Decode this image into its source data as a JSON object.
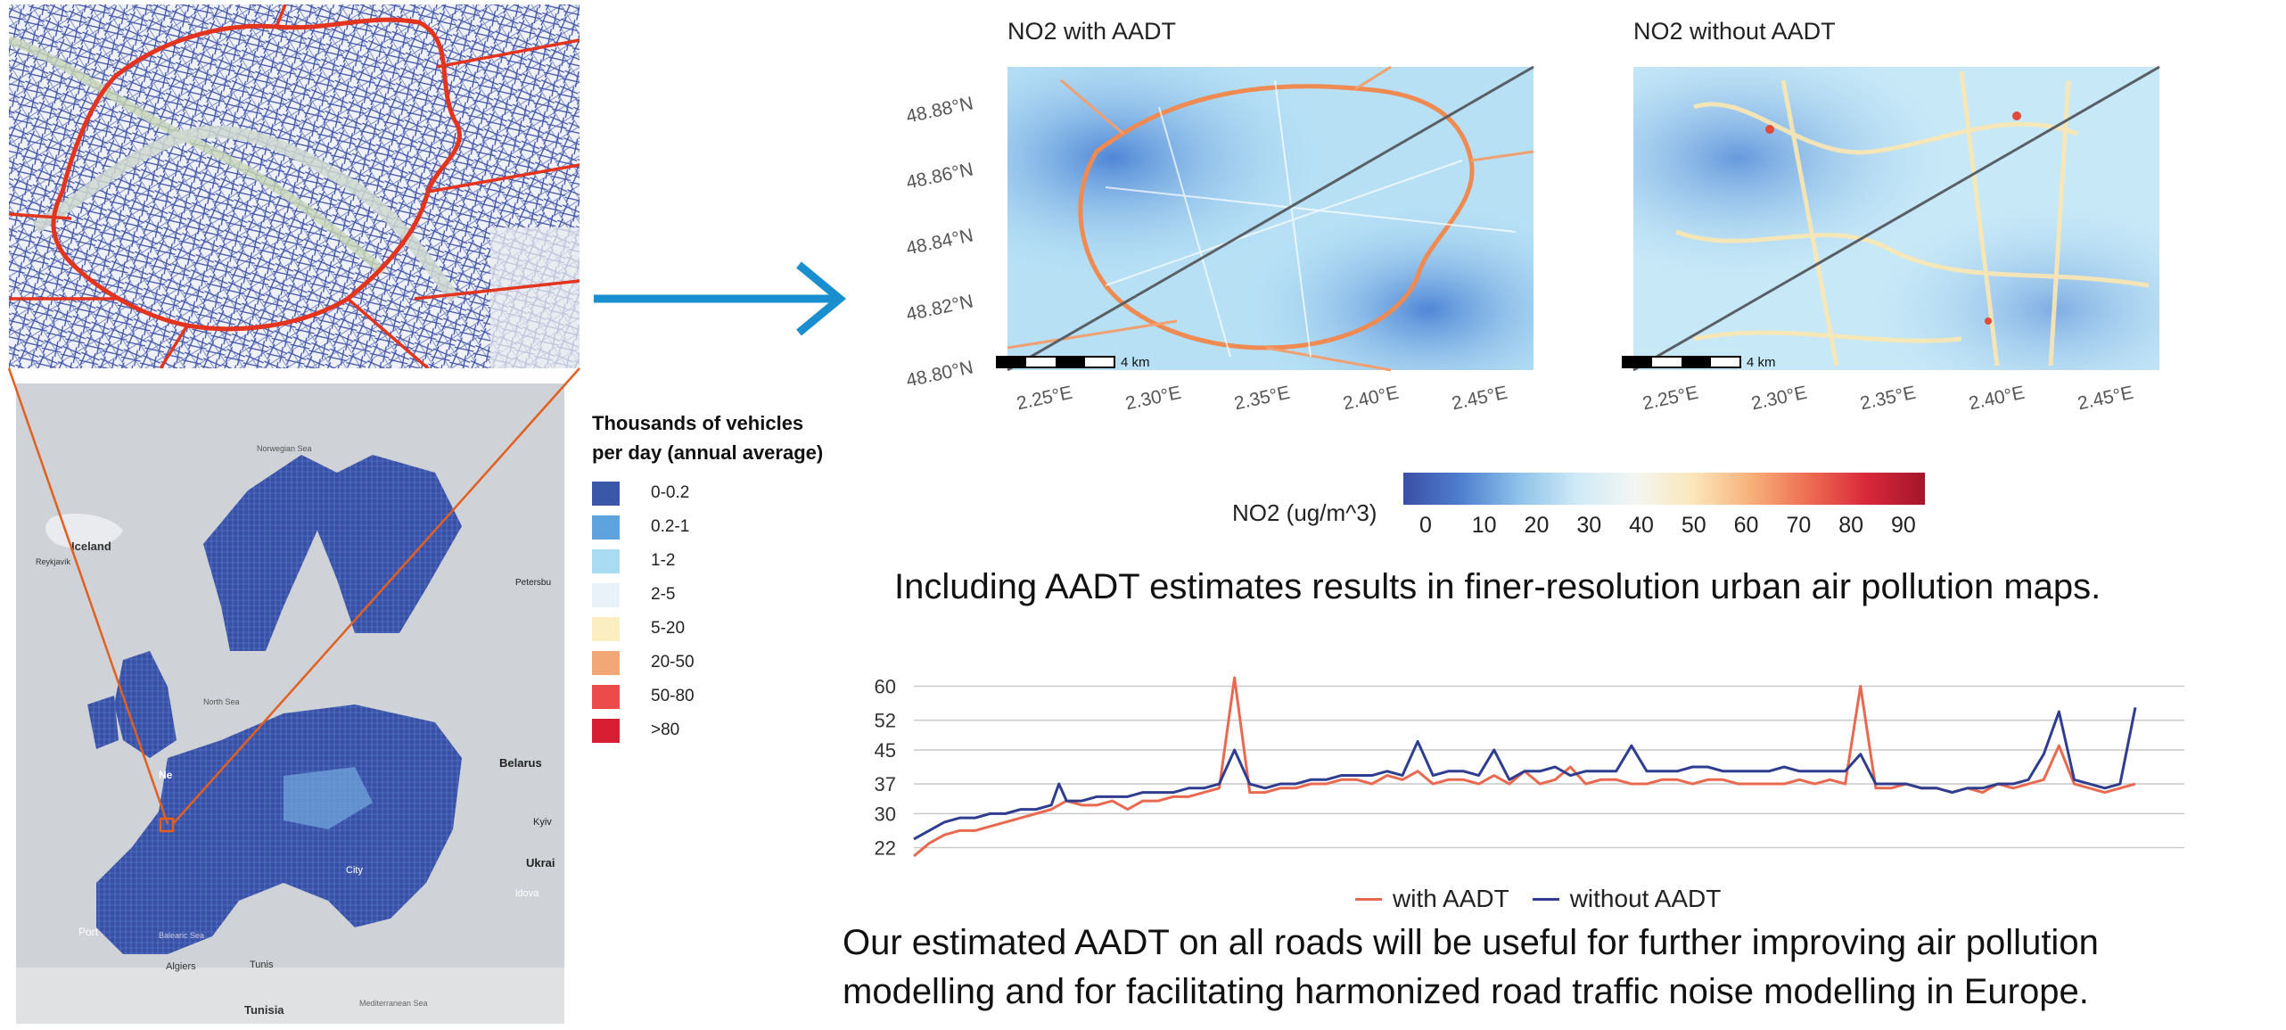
{
  "legend": {
    "title_line1": "Thousands of vehicles",
    "title_line2": "per day (annual average)",
    "items": [
      {
        "label": "0-0.2",
        "color": "#3a57a8"
      },
      {
        "label": "0.2-1",
        "color": "#5fa3de"
      },
      {
        "label": "1-2",
        "color": "#a9dbf2"
      },
      {
        "label": "2-5",
        "color": "#e9f2f8"
      },
      {
        "label": "5-20",
        "color": "#fbeec0"
      },
      {
        "label": "20-50",
        "color": "#f2a777"
      },
      {
        "label": "50-80",
        "color": "#ec4b4b"
      },
      {
        "label": ">80",
        "color": "#d81e33"
      }
    ]
  },
  "europe_map_labels": {
    "iceland": "Iceland",
    "reykjavik": "Reykjavík",
    "norwegian_sea": "Norwegian Sea",
    "north_sea": "North Sea",
    "belarus": "Belarus",
    "ukraine": "Ukrai",
    "kyiv": "Kyiv",
    "petersburg": "Petersbu",
    "netherlands": "Ne",
    "moldova": "ldova",
    "portugal": "Port",
    "algiers": "Algiers",
    "tunis": "Tunis",
    "tunisia": "Tunisia",
    "mediterranean": "Mediterranean Sea",
    "balearic": "Balearic Sea",
    "city": "City"
  },
  "no2_maps": [
    {
      "title": "NO2 with AADT",
      "scale_label": "4 km"
    },
    {
      "title": "NO2 without AADT",
      "scale_label": "4 km"
    }
  ],
  "lat_ticks": [
    "48.88°N",
    "48.86°N",
    "48.84°N",
    "48.82°N",
    "48.80°N"
  ],
  "lon_ticks": [
    "2.25°E",
    "2.30°E",
    "2.35°E",
    "2.40°E",
    "2.45°E"
  ],
  "colorbar": {
    "label": "NO2 (ug/m^3)",
    "ticks": [
      "0",
      "10",
      "20",
      "30",
      "40",
      "50",
      "60",
      "70",
      "80",
      "90"
    ],
    "colors": [
      "#3a4fa6",
      "#4f7fcf",
      "#8ec2ea",
      "#cfeaf7",
      "#f3f6f2",
      "#fbe6bb",
      "#f7b07a",
      "#ee6c52",
      "#d9283a",
      "#a3162c"
    ]
  },
  "sentence1": "Including AADT estimates results in finer-resolution urban air pollution maps.",
  "sentence2_line1": "Our estimated AADT on all roads will be useful for further improving air pollution",
  "sentence2_line2": "modelling and for facilitating harmonized road traffic noise modelling in Europe.",
  "chart_data": {
    "type": "line",
    "title": "",
    "xlabel": "",
    "ylabel": "",
    "ylim": [
      20,
      62
    ],
    "yticks": [
      22,
      30,
      37,
      45,
      52,
      60
    ],
    "grid": true,
    "legend_position": "bottom",
    "x": [
      0,
      10,
      20,
      30,
      40,
      50,
      60,
      70,
      80,
      90,
      95,
      100,
      110,
      120,
      130,
      140,
      150,
      160,
      170,
      180,
      190,
      200,
      210,
      220,
      230,
      240,
      250,
      260,
      270,
      280,
      290,
      300,
      310,
      320,
      330,
      340,
      350,
      360,
      370,
      380,
      390,
      400,
      410,
      420,
      430,
      440,
      450,
      460,
      470,
      480,
      490,
      500,
      510,
      520,
      530,
      540,
      550,
      560,
      570,
      580,
      590,
      600,
      610,
      620,
      630,
      640,
      650,
      660,
      670,
      680,
      690,
      700,
      710,
      720,
      730,
      740,
      750,
      760,
      770,
      780,
      790,
      800
    ],
    "series": [
      {
        "name": "with AADT",
        "color": "#e8694f",
        "values": [
          20,
          23,
          25,
          26,
          26,
          27,
          28,
          29,
          30,
          31,
          32,
          33,
          32,
          32,
          33,
          31,
          33,
          33,
          34,
          34,
          35,
          36,
          62,
          35,
          35,
          36,
          36,
          37,
          37,
          38,
          38,
          37,
          39,
          38,
          40,
          37,
          38,
          38,
          37,
          39,
          37,
          40,
          37,
          38,
          41,
          37,
          38,
          38,
          37,
          37,
          38,
          38,
          37,
          38,
          38,
          37,
          37,
          37,
          37,
          38,
          37,
          38,
          37,
          60,
          36,
          36,
          37,
          36,
          36,
          35,
          36,
          35,
          37,
          36,
          37,
          38,
          46,
          37,
          36,
          35,
          36,
          37
        ]
      },
      {
        "name": "without AADT",
        "color": "#2e3d8f",
        "values": [
          24,
          26,
          28,
          29,
          29,
          30,
          30,
          31,
          31,
          32,
          37,
          33,
          33,
          34,
          34,
          34,
          35,
          35,
          35,
          36,
          36,
          37,
          45,
          37,
          36,
          37,
          37,
          38,
          38,
          39,
          39,
          39,
          40,
          39,
          47,
          39,
          40,
          40,
          39,
          45,
          38,
          40,
          40,
          41,
          39,
          40,
          40,
          40,
          46,
          40,
          40,
          40,
          41,
          41,
          40,
          40,
          40,
          40,
          41,
          40,
          40,
          40,
          40,
          44,
          37,
          37,
          37,
          36,
          36,
          35,
          36,
          36,
          37,
          37,
          38,
          44,
          54,
          38,
          37,
          36,
          37,
          55
        ]
      }
    ]
  }
}
